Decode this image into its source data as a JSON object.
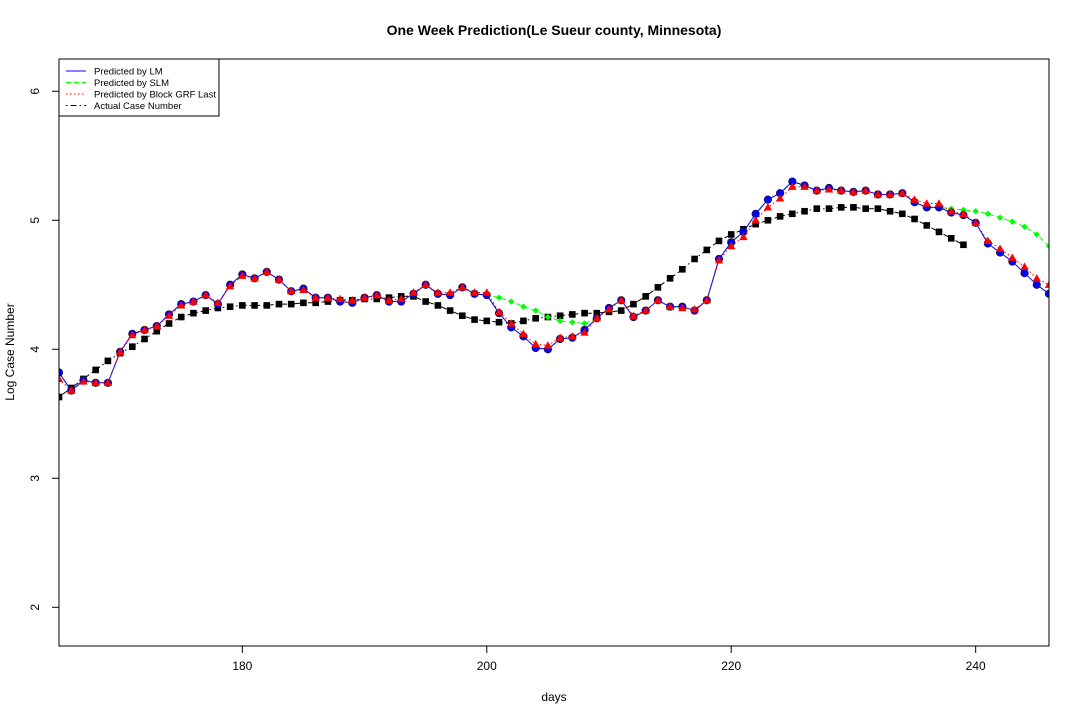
{
  "chart_data": {
    "type": "line",
    "title": "One Week Prediction(Le Sueur county, Minnesota)",
    "xlabel": "days",
    "ylabel": "Log Case Number",
    "xlim": [
      165,
      246
    ],
    "ylim": [
      1.7,
      6.25
    ],
    "xticks": [
      180,
      200,
      220,
      240
    ],
    "yticks": [
      2,
      3,
      4,
      5,
      6
    ],
    "grid": false,
    "legend_position": "top-left",
    "x": [
      165,
      166,
      167,
      168,
      169,
      170,
      171,
      172,
      173,
      174,
      175,
      176,
      177,
      178,
      179,
      180,
      181,
      182,
      183,
      184,
      185,
      186,
      187,
      188,
      189,
      190,
      191,
      192,
      193,
      194,
      195,
      196,
      197,
      198,
      199,
      200,
      201,
      202,
      203,
      204,
      205,
      206,
      207,
      208,
      209,
      210,
      211,
      212,
      213,
      214,
      215,
      216,
      217,
      218,
      219,
      220,
      221,
      222,
      223,
      224,
      225,
      226,
      227,
      228,
      229,
      230,
      231,
      232,
      233,
      234,
      235,
      236,
      237,
      238,
      239,
      240,
      241,
      242,
      243,
      244,
      245,
      246
    ],
    "series": [
      {
        "name": "Predicted by LM",
        "color": "#0000ff",
        "marker": "circle",
        "line": "solid",
        "values": [
          3.82,
          3.68,
          3.76,
          3.74,
          3.74,
          3.98,
          4.12,
          4.15,
          4.18,
          4.27,
          4.35,
          4.37,
          4.42,
          4.35,
          4.5,
          4.58,
          4.55,
          4.6,
          4.54,
          4.45,
          4.47,
          4.4,
          4.4,
          4.37,
          4.36,
          4.4,
          4.42,
          4.37,
          4.37,
          4.43,
          4.5,
          4.43,
          4.42,
          4.48,
          4.43,
          4.42,
          4.28,
          4.17,
          4.1,
          4.01,
          4.0,
          4.08,
          4.09,
          4.15,
          4.24,
          4.32,
          4.38,
          4.25,
          4.3,
          4.38,
          4.33,
          4.33,
          4.3,
          4.38,
          4.7,
          4.83,
          4.91,
          5.05,
          5.16,
          5.21,
          5.3,
          5.27,
          5.23,
          5.25,
          5.23,
          5.22,
          5.23,
          5.2,
          5.2,
          5.21,
          5.14,
          5.1,
          5.1,
          5.06,
          5.04,
          4.98,
          4.82,
          4.75,
          4.68,
          4.59,
          4.5,
          4.43
        ]
      },
      {
        "name": "Predicted by SLM",
        "color": "#00ff00",
        "marker": "diamond",
        "line": "dashed",
        "values": [
          3.82,
          3.68,
          3.76,
          3.74,
          3.74,
          3.98,
          4.12,
          4.15,
          4.18,
          4.27,
          4.35,
          4.37,
          4.42,
          4.35,
          4.5,
          4.58,
          4.55,
          4.6,
          4.54,
          4.45,
          4.47,
          4.4,
          4.4,
          4.37,
          4.36,
          4.4,
          4.42,
          4.37,
          4.37,
          4.43,
          4.5,
          4.43,
          4.42,
          4.48,
          4.43,
          4.42,
          4.4,
          4.37,
          4.33,
          4.3,
          4.25,
          4.22,
          4.21,
          4.2,
          4.24,
          4.32,
          4.38,
          4.25,
          4.3,
          4.38,
          4.33,
          4.33,
          4.3,
          4.38,
          4.7,
          4.83,
          4.91,
          5.05,
          5.16,
          5.21,
          5.3,
          5.27,
          5.23,
          5.25,
          5.23,
          5.22,
          5.23,
          5.2,
          5.2,
          5.21,
          5.14,
          5.1,
          5.1,
          5.09,
          5.08,
          5.07,
          5.05,
          5.02,
          4.99,
          4.95,
          4.89,
          4.8
        ]
      },
      {
        "name": "Predicted by Block GRF Last",
        "color": "#ff0000",
        "marker": "triangle",
        "line": "dotted",
        "values": [
          3.77,
          3.68,
          3.75,
          3.74,
          3.74,
          3.98,
          4.11,
          4.15,
          4.18,
          4.26,
          4.34,
          4.37,
          4.42,
          4.36,
          4.49,
          4.57,
          4.55,
          4.6,
          4.54,
          4.45,
          4.46,
          4.4,
          4.4,
          4.39,
          4.38,
          4.4,
          4.42,
          4.38,
          4.39,
          4.44,
          4.5,
          4.44,
          4.44,
          4.48,
          4.44,
          4.44,
          4.29,
          4.2,
          4.12,
          4.04,
          4.03,
          4.09,
          4.1,
          4.13,
          4.24,
          4.31,
          4.38,
          4.26,
          4.3,
          4.38,
          4.33,
          4.32,
          4.31,
          4.38,
          4.69,
          4.8,
          4.87,
          5.0,
          5.1,
          5.17,
          5.26,
          5.26,
          5.23,
          5.24,
          5.23,
          5.22,
          5.23,
          5.2,
          5.2,
          5.21,
          5.16,
          5.13,
          5.13,
          5.07,
          5.05,
          4.98,
          4.84,
          4.78,
          4.71,
          4.64,
          4.55,
          4.5
        ]
      },
      {
        "name": "Actual Case Number",
        "color": "#000000",
        "marker": "square",
        "line": "dotdash",
        "values": [
          3.63,
          3.7,
          3.77,
          3.84,
          3.91,
          3.97,
          4.02,
          4.08,
          4.14,
          4.2,
          4.25,
          4.28,
          4.3,
          4.32,
          4.33,
          4.34,
          4.34,
          4.34,
          4.35,
          4.35,
          4.36,
          4.36,
          4.37,
          4.38,
          4.38,
          4.39,
          4.39,
          4.4,
          4.41,
          4.41,
          4.37,
          4.34,
          4.3,
          4.26,
          4.23,
          4.22,
          4.21,
          4.2,
          4.22,
          4.24,
          4.25,
          4.26,
          4.27,
          4.28,
          4.28,
          4.29,
          4.3,
          4.35,
          4.41,
          4.48,
          4.55,
          4.62,
          4.7,
          4.77,
          4.84,
          4.89,
          4.93,
          4.97,
          5.0,
          5.03,
          5.05,
          5.07,
          5.09,
          5.09,
          5.1,
          5.1,
          5.09,
          5.09,
          5.07,
          5.05,
          5.01,
          4.96,
          4.91,
          4.86,
          4.81,
          null,
          null,
          null,
          null,
          null,
          null,
          null
        ]
      }
    ]
  }
}
